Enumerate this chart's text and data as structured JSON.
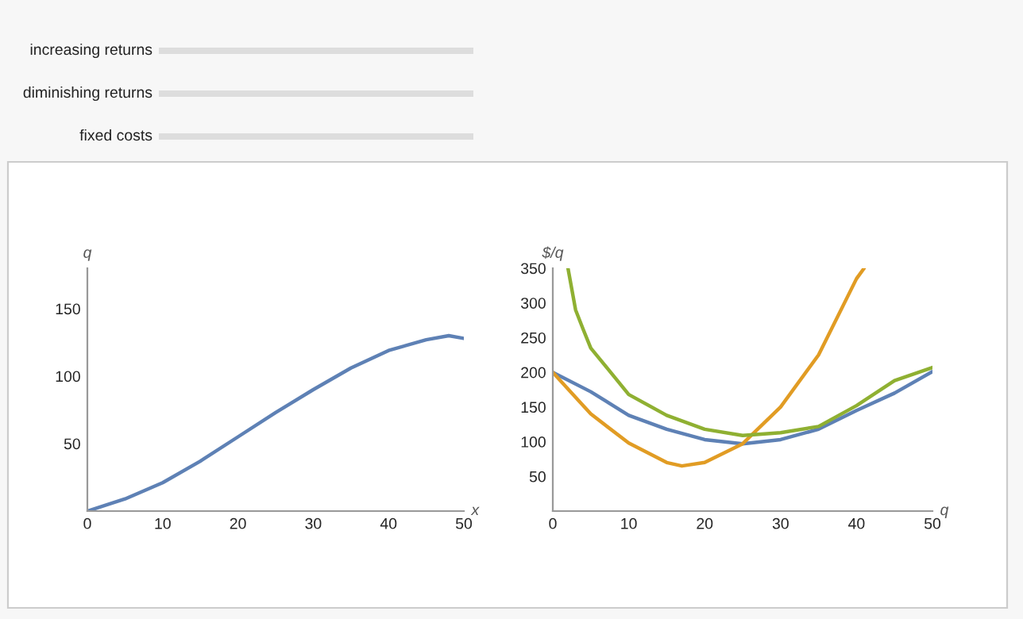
{
  "chart_data": [
    {
      "type": "other",
      "annotations": [
        "increasing returns",
        "diminishing returns",
        "fixed costs"
      ]
    },
    {
      "type": "line",
      "xlabel": "x",
      "ylabel": "q",
      "xlim": [
        0,
        50
      ],
      "ylim": [
        0,
        180
      ],
      "xticks": [
        0,
        10,
        20,
        30,
        40,
        50
      ],
      "yticks": [
        50,
        100,
        150
      ],
      "grid": false,
      "series": [
        {
          "color": "#5e81b5",
          "x": [
            0,
            5,
            10,
            15,
            20,
            25,
            30,
            35,
            40,
            45,
            48,
            50
          ],
          "values": [
            0,
            9,
            21,
            37,
            55,
            73,
            90,
            106,
            119,
            127,
            130,
            128
          ]
        }
      ]
    },
    {
      "type": "line",
      "xlabel": "q",
      "ylabel": "$/q",
      "xlim": [
        0,
        50
      ],
      "ylim": [
        0,
        350
      ],
      "xticks": [
        0,
        10,
        20,
        30,
        40,
        50
      ],
      "yticks": [
        50,
        100,
        150,
        200,
        250,
        300,
        350
      ],
      "grid": false,
      "series": [
        {
          "color": "#5e81b5",
          "x": [
            0,
            5,
            10,
            15,
            20,
            25,
            30,
            35,
            40,
            45,
            50
          ],
          "values": [
            200,
            172,
            138,
            118,
            103,
            97,
            103,
            118,
            145,
            170,
            201
          ]
        },
        {
          "color": "#e19c24",
          "x": [
            0,
            5,
            10,
            15,
            17,
            20,
            25,
            30,
            35,
            40,
            41
          ],
          "values": [
            200,
            140,
            98,
            70,
            65,
            70,
            97,
            150,
            225,
            335,
            350
          ]
        },
        {
          "color": "#8fb032",
          "x": [
            2,
            3,
            4,
            5,
            10,
            15,
            20,
            25,
            30,
            35,
            40,
            45,
            50
          ],
          "values": [
            350,
            290,
            262,
            235,
            168,
            138,
            118,
            109,
            113,
            122,
            152,
            188,
            207
          ]
        }
      ]
    }
  ]
}
